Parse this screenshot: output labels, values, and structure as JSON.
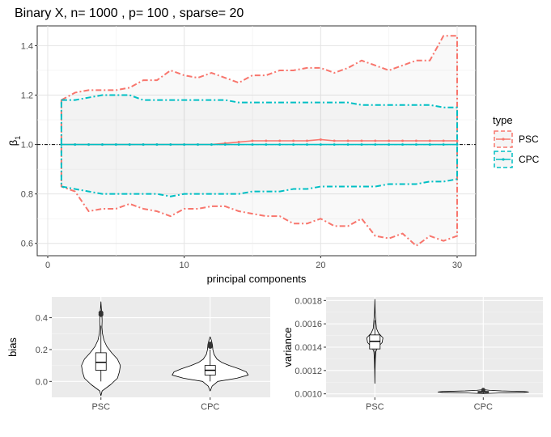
{
  "chart_data": [
    {
      "type": "line",
      "title": "Binary X, n= 1000 , p= 100 , sparse= 20",
      "xlabel": "principal components",
      "ylabel": "β1",
      "xlim": [
        0,
        30
      ],
      "ylim": [
        0.55,
        1.48
      ],
      "x_ticks": [
        0,
        10,
        20,
        30
      ],
      "y_ticks": [
        0.6,
        0.8,
        1.0,
        1.2,
        1.4
      ],
      "x_tick_labels": [
        "0",
        "10",
        "20",
        "30"
      ],
      "y_tick_labels": [
        "0.6",
        "0.8",
        "1.0",
        "1.2",
        "1.4"
      ],
      "grid": true,
      "reference_line": 1.0,
      "legend": {
        "title": "type",
        "position": "right",
        "entries": [
          "PSC",
          "CPC"
        ]
      },
      "x": [
        1,
        2,
        3,
        4,
        5,
        6,
        7,
        8,
        9,
        10,
        11,
        12,
        13,
        14,
        15,
        16,
        17,
        18,
        19,
        20,
        21,
        22,
        23,
        24,
        25,
        26,
        27,
        28,
        29,
        30
      ],
      "series": [
        {
          "name": "PSC",
          "color": "#F8766D",
          "mean": [
            1.0,
            1.0,
            1.0,
            1.0,
            1.0,
            1.0,
            1.0,
            1.0,
            1.0,
            1.0,
            1.0,
            1.0,
            1.005,
            1.01,
            1.015,
            1.015,
            1.015,
            1.015,
            1.015,
            1.02,
            1.015,
            1.015,
            1.015,
            1.015,
            1.015,
            1.015,
            1.015,
            1.015,
            1.015,
            1.015
          ],
          "upper": [
            1.18,
            1.21,
            1.22,
            1.22,
            1.22,
            1.23,
            1.26,
            1.26,
            1.3,
            1.28,
            1.27,
            1.29,
            1.27,
            1.25,
            1.28,
            1.28,
            1.3,
            1.3,
            1.31,
            1.31,
            1.29,
            1.31,
            1.34,
            1.32,
            1.3,
            1.32,
            1.34,
            1.34,
            1.44,
            1.44
          ],
          "lower": [
            0.83,
            0.81,
            0.73,
            0.74,
            0.74,
            0.76,
            0.74,
            0.73,
            0.71,
            0.74,
            0.74,
            0.75,
            0.75,
            0.73,
            0.72,
            0.71,
            0.71,
            0.68,
            0.68,
            0.7,
            0.67,
            0.67,
            0.7,
            0.63,
            0.62,
            0.64,
            0.59,
            0.63,
            0.61,
            0.63
          ]
        },
        {
          "name": "CPC",
          "color": "#00BFC4",
          "mean": [
            1.0,
            1.0,
            1.0,
            1.0,
            1.0,
            1.0,
            1.0,
            1.0,
            1.0,
            1.0,
            1.0,
            1.0,
            1.0,
            1.0,
            1.0,
            1.0,
            1.0,
            1.0,
            1.0,
            1.0,
            1.0,
            1.0,
            1.0,
            1.0,
            1.0,
            1.0,
            1.0,
            1.0,
            1.0,
            1.0
          ],
          "upper": [
            1.18,
            1.18,
            1.19,
            1.2,
            1.2,
            1.2,
            1.18,
            1.18,
            1.18,
            1.18,
            1.18,
            1.18,
            1.18,
            1.17,
            1.17,
            1.17,
            1.17,
            1.17,
            1.17,
            1.17,
            1.17,
            1.17,
            1.16,
            1.16,
            1.16,
            1.16,
            1.16,
            1.16,
            1.15,
            1.15
          ],
          "lower": [
            0.83,
            0.82,
            0.81,
            0.8,
            0.8,
            0.8,
            0.8,
            0.8,
            0.79,
            0.8,
            0.8,
            0.8,
            0.8,
            0.8,
            0.81,
            0.81,
            0.81,
            0.82,
            0.82,
            0.83,
            0.83,
            0.83,
            0.83,
            0.83,
            0.84,
            0.84,
            0.84,
            0.85,
            0.85,
            0.86
          ]
        }
      ]
    },
    {
      "type": "violin",
      "title": "",
      "xlabel": "",
      "ylabel": "bias",
      "categories": [
        "PSC",
        "CPC"
      ],
      "ylim": [
        -0.1,
        0.53
      ],
      "y_ticks": [
        0.0,
        0.2,
        0.4
      ],
      "y_tick_labels": [
        "0.0",
        "0.2",
        "0.4"
      ],
      "grid": true,
      "box": [
        {
          "name": "PSC",
          "min": 0.0,
          "q1": 0.07,
          "median": 0.12,
          "q3": 0.18,
          "max": 0.35,
          "outliers": [
            0.42,
            0.43
          ]
        },
        {
          "name": "CPC",
          "min": 0.0,
          "q1": 0.04,
          "median": 0.07,
          "q3": 0.1,
          "max": 0.2,
          "outliers": [
            0.22,
            0.235
          ]
        }
      ],
      "density": [
        {
          "name": "PSC",
          "y": [
            -0.09,
            -0.06,
            -0.02,
            0.02,
            0.06,
            0.1,
            0.14,
            0.18,
            0.22,
            0.26,
            0.3,
            0.34,
            0.38,
            0.42,
            0.46,
            0.5
          ],
          "w": [
            0,
            0.06,
            0.5,
            0.85,
            0.95,
            1.0,
            0.85,
            0.55,
            0.3,
            0.15,
            0.08,
            0.05,
            0.06,
            0.05,
            0.02,
            0
          ]
        },
        {
          "name": "CPC",
          "y": [
            -0.06,
            -0.03,
            0.0,
            0.02,
            0.04,
            0.06,
            0.08,
            0.1,
            0.12,
            0.14,
            0.17,
            0.2,
            0.23,
            0.26,
            0.28
          ],
          "w": [
            0,
            0.05,
            0.2,
            0.7,
            1.0,
            0.95,
            0.75,
            0.5,
            0.3,
            0.18,
            0.1,
            0.07,
            0.06,
            0.03,
            0
          ]
        }
      ]
    },
    {
      "type": "violin",
      "title": "",
      "xlabel": "",
      "ylabel": "variance",
      "categories": [
        "PSC",
        "CPC"
      ],
      "ylim": [
        0.00097,
        0.00183
      ],
      "y_ticks": [
        0.001,
        0.0012,
        0.0014,
        0.0016,
        0.0018
      ],
      "y_tick_labels": [
        "0.0010",
        "0.0012",
        "0.0014",
        "0.0016",
        "0.0018"
      ],
      "grid": true,
      "box": [
        {
          "name": "PSC",
          "min": 0.00122,
          "q1": 0.001385,
          "median": 0.00145,
          "q3": 0.001505,
          "max": 0.00163,
          "outliers": []
        },
        {
          "name": "CPC",
          "min": 0.001005,
          "q1": 0.001012,
          "median": 0.001016,
          "q3": 0.00102,
          "max": 0.001032,
          "outliers": [
            0.001028,
            0.001034
          ]
        }
      ],
      "density": [
        {
          "name": "PSC",
          "y": [
            0.00109,
            0.0012,
            0.0013,
            0.00136,
            0.0014,
            0.00144,
            0.00148,
            0.00152,
            0.00156,
            0.0016,
            0.0017,
            0.00181
          ],
          "w": [
            0,
            0.02,
            0.06,
            0.12,
            0.35,
            0.9,
            1.0,
            0.45,
            0.2,
            0.15,
            0.04,
            0
          ]
        },
        {
          "name": "CPC",
          "y": [
            0.001002,
            0.001008,
            0.001012,
            0.001016,
            0.00102,
            0.001025,
            0.00103,
            0.001036
          ],
          "w": [
            0,
            0.4,
            0.9,
            1.0,
            0.9,
            0.4,
            0.15,
            0
          ]
        }
      ]
    }
  ]
}
